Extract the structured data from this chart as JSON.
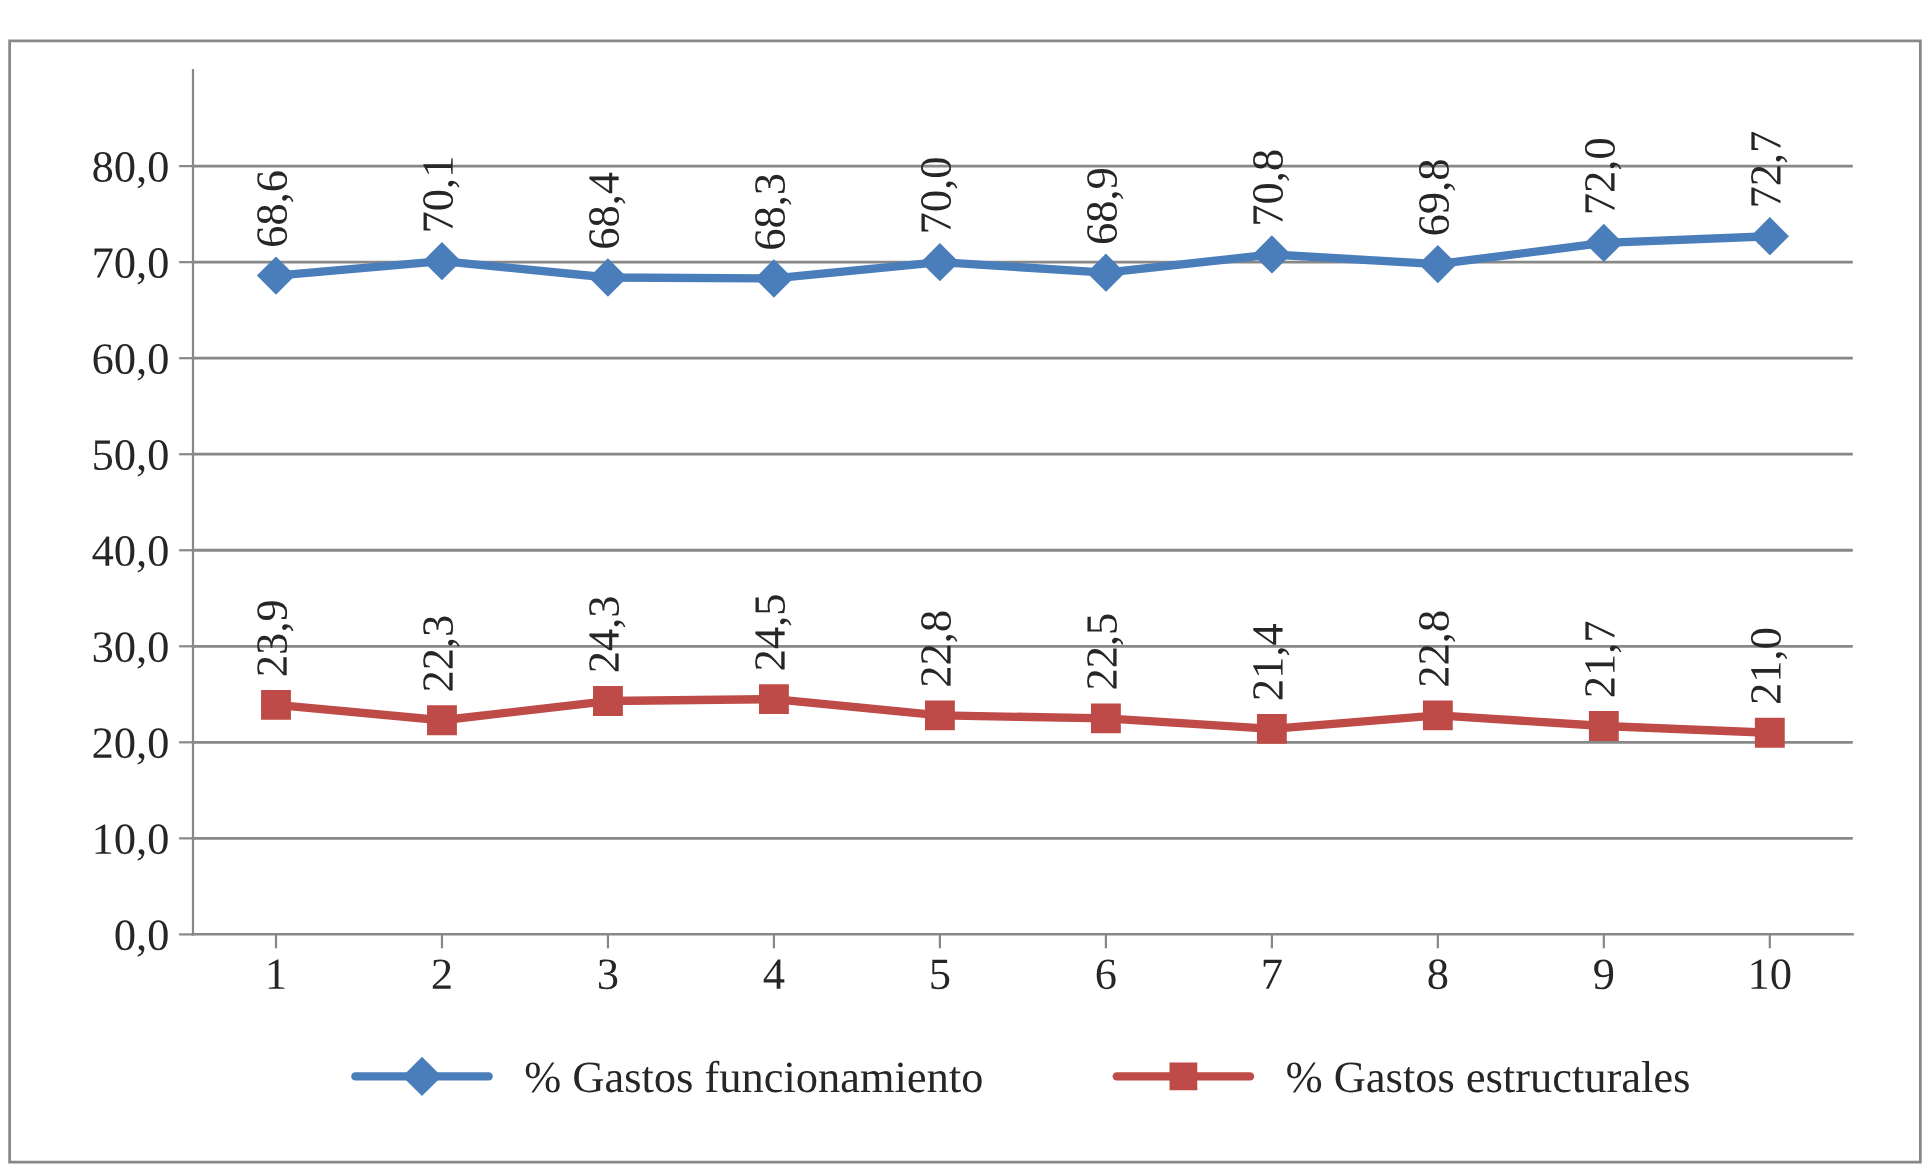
{
  "chart_data": {
    "type": "line",
    "categories": [
      "1",
      "2",
      "3",
      "4",
      "5",
      "6",
      "7",
      "8",
      "9",
      "10"
    ],
    "series": [
      {
        "name": "% Gastos funcionamiento",
        "color": "#4a7ebb",
        "marker": "diamond",
        "values": [
          68.6,
          70.1,
          68.4,
          68.3,
          70.0,
          68.9,
          70.8,
          69.8,
          72.0,
          72.7
        ],
        "value_labels": [
          "68,6",
          "70,1",
          "68,4",
          "68,3",
          "70,0",
          "68,9",
          "70,8",
          "69,8",
          "72,0",
          "72,7"
        ]
      },
      {
        "name": "% Gastos estructurales",
        "color": "#be4b48",
        "marker": "square",
        "values": [
          23.9,
          22.3,
          24.3,
          24.5,
          22.8,
          22.5,
          21.4,
          22.8,
          21.7,
          21.0
        ],
        "value_labels": [
          "23,9",
          "22,3",
          "24,3",
          "24,5",
          "22,8",
          "22,5",
          "21,4",
          "22,8",
          "21,7",
          "21,0"
        ]
      }
    ],
    "ylim": [
      0,
      90
    ],
    "yticks": [
      {
        "value": 0,
        "label": "0,0"
      },
      {
        "value": 10,
        "label": "10,0"
      },
      {
        "value": 20,
        "label": "20,0"
      },
      {
        "value": 30,
        "label": "30,0"
      },
      {
        "value": 40,
        "label": "40,0"
      },
      {
        "value": 50,
        "label": "50,0"
      },
      {
        "value": 60,
        "label": "60,0"
      },
      {
        "value": 70,
        "label": "70,0"
      },
      {
        "value": 80,
        "label": "80,0"
      }
    ],
    "grid": "y",
    "legend": "bottom",
    "line_style": "solid"
  }
}
